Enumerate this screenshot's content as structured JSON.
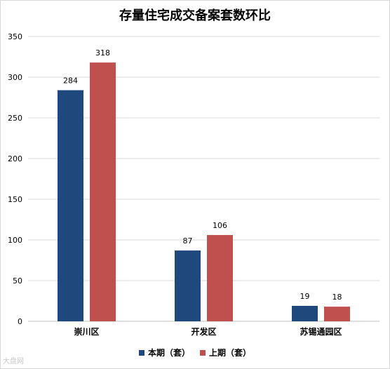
{
  "chart_data": {
    "type": "bar",
    "title": "存量住宅成交备案套数环比",
    "categories": [
      "崇川区",
      "开发区",
      "苏锡通园区"
    ],
    "series": [
      {
        "name": "本期（套）",
        "values": [
          284,
          87,
          19
        ],
        "color": "#1f497d"
      },
      {
        "name": "上期（套）",
        "values": [
          318,
          106,
          18
        ],
        "color": "#c0504d"
      }
    ],
    "ylim": [
      0,
      350
    ],
    "yticks": [
      0,
      50,
      100,
      150,
      200,
      250,
      300,
      350
    ],
    "grid": true,
    "legend": "bottom"
  },
  "watermark": "大盘网"
}
